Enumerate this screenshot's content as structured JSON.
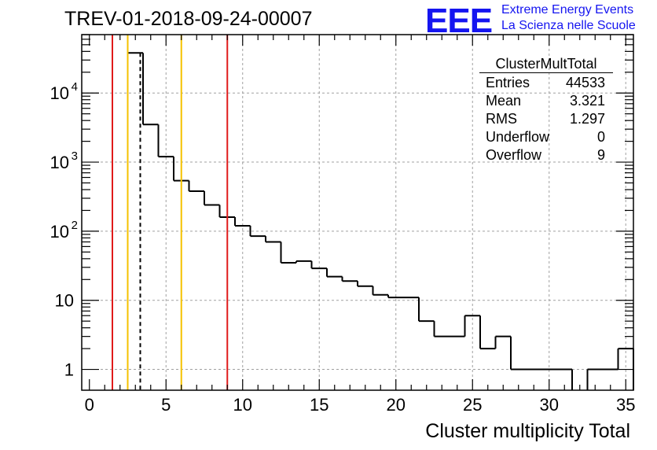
{
  "title": "TREV-01-2018-09-24-00007",
  "logo": {
    "mark": "EEE",
    "line1": "Extreme Energy Events",
    "line2": "La Scienza nelle Scuole",
    "color": "#1515f0"
  },
  "stats": {
    "title": "ClusterMultTotal",
    "rows": [
      {
        "label": "Entries",
        "value": "44533"
      },
      {
        "label": "Mean",
        "value": "3.321"
      },
      {
        "label": "RMS",
        "value": "1.297"
      },
      {
        "label": "Underflow",
        "value": "0"
      },
      {
        "label": "Overflow",
        "value": "9"
      }
    ]
  },
  "chart_data": {
    "type": "histogram",
    "title": "TREV-01-2018-09-24-00007",
    "xlabel": "Cluster multiplicity Total",
    "ylabel": "",
    "xlim": [
      -0.5,
      35.5
    ],
    "ylim": [
      0.5,
      70000
    ],
    "yscale": "log",
    "grid": true,
    "bin_edges": [
      2.5,
      3.5,
      4.5,
      5.5,
      6.5,
      7.5,
      8.5,
      9.5,
      10.5,
      11.5,
      12.5,
      13.5,
      14.5,
      15.5,
      16.5,
      17.5,
      18.5,
      19.5,
      20.5,
      21.5,
      22.5,
      23.5,
      24.5,
      25.5,
      26.5,
      27.5,
      28.5,
      29.5,
      30.5,
      31.5,
      32.5,
      33.5,
      34.5,
      35.5
    ],
    "bin_values": [
      38000,
      3500,
      1200,
      540,
      380,
      240,
      160,
      120,
      85,
      70,
      35,
      37,
      29,
      22,
      19,
      16,
      12,
      11,
      11,
      5,
      3,
      3,
      6,
      2,
      3,
      1,
      1,
      1,
      1,
      0,
      1,
      1,
      2
    ],
    "x_ticks": [
      0,
      5,
      10,
      15,
      20,
      25,
      30,
      35
    ],
    "x_tick_labels": [
      "0",
      "5",
      "10",
      "15",
      "20",
      "25",
      "30",
      "35"
    ],
    "y_ticks": [
      1,
      10,
      100,
      1000,
      10000
    ],
    "y_tick_labels": [
      {
        "base": "1",
        "exp": ""
      },
      {
        "base": "10",
        "exp": ""
      },
      {
        "base": "10",
        "exp": "2"
      },
      {
        "base": "10",
        "exp": "3"
      },
      {
        "base": "10",
        "exp": "4"
      }
    ],
    "markers": [
      {
        "name": "red-line-left",
        "x": 1.5,
        "color": "#e01b1b",
        "style": "solid"
      },
      {
        "name": "yellow-line-left",
        "x": 2.5,
        "color": "#f5c200",
        "style": "solid"
      },
      {
        "name": "mean-line",
        "x": 3.32,
        "color": "#000000",
        "style": "dashed"
      },
      {
        "name": "yellow-line-right",
        "x": 6.0,
        "color": "#f5c200",
        "style": "solid"
      },
      {
        "name": "red-line-right",
        "x": 9.0,
        "color": "#e01b1b",
        "style": "solid"
      }
    ]
  }
}
